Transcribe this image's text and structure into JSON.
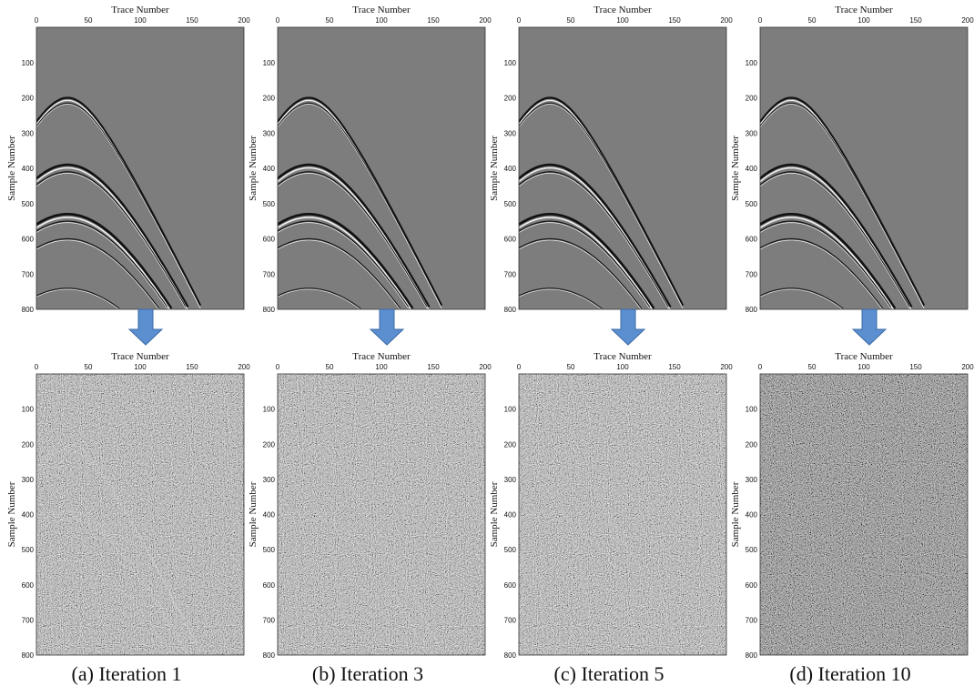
{
  "axes": {
    "x_label": "Trace Number",
    "y_label": "Sample Number",
    "xticks": [
      0,
      50,
      100,
      150,
      200
    ],
    "yticks": [
      100,
      200,
      300,
      400,
      500,
      600,
      700,
      800
    ]
  },
  "captions": [
    "(a) Iteration 1",
    "(b) Iteration 3",
    "(c) Iteration 5",
    "(d) Iteration 10"
  ]
}
